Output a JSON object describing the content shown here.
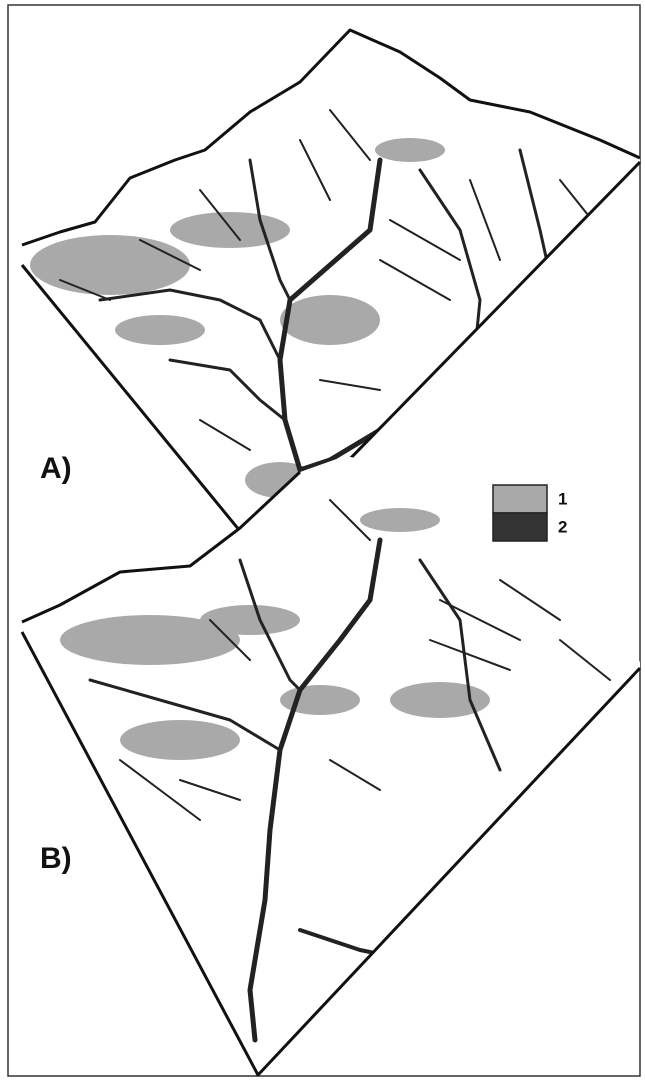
{
  "panels": [
    {
      "label": "A)"
    },
    {
      "label": "B)"
    }
  ],
  "legend": [
    {
      "label": "1"
    },
    {
      "label": "2"
    }
  ]
}
